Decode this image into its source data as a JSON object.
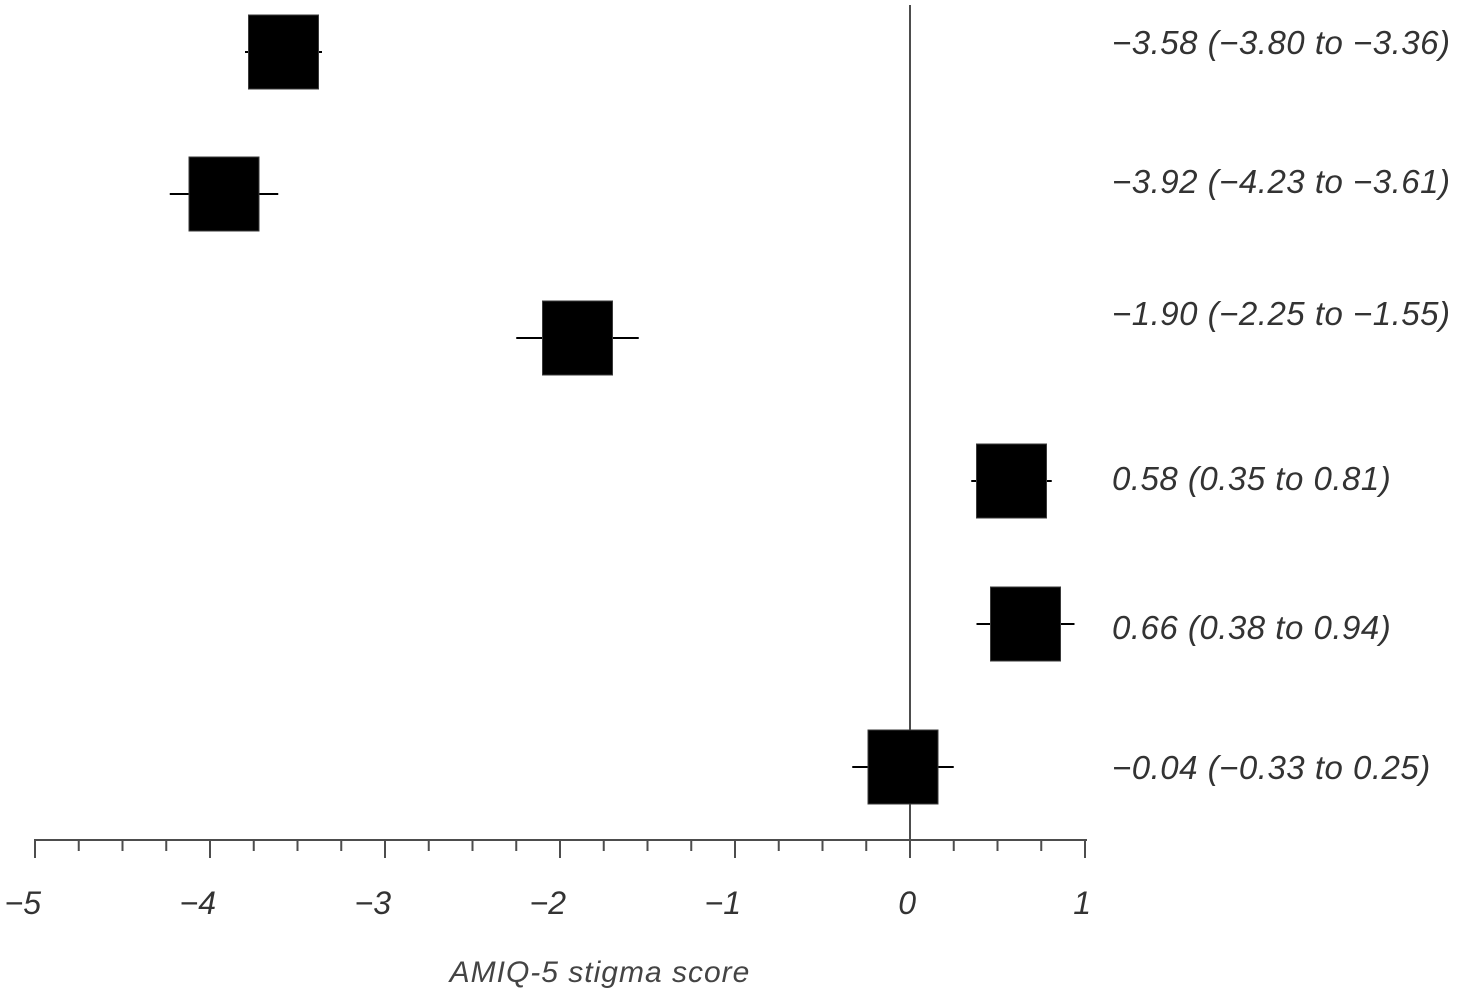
{
  "chart_data": {
    "type": "scatter",
    "marker": "square",
    "error_bars": "horizontal",
    "series": [
      {
        "x": [
          -3.58,
          -3.92,
          -1.9,
          0.58,
          0.66,
          -0.04
        ],
        "x_low": [
          -3.8,
          -4.23,
          -2.25,
          0.35,
          0.38,
          -0.33
        ],
        "x_high": [
          -3.36,
          -3.61,
          -1.55,
          0.81,
          0.94,
          0.25
        ]
      }
    ],
    "annotations": [
      "−3.58 (−3.80 to −3.36)",
      "−3.92 (−4.23 to −3.61)",
      "−1.90 (−2.25 to −1.55)",
      "0.58 (0.35 to 0.81)",
      "0.66 (0.38 to 0.94)",
      "−0.04 (−0.33 to 0.25)"
    ],
    "xlabel": "AMIQ-5 stigma score",
    "xlim": [
      -5,
      1
    ],
    "x_ticks": [
      -5,
      -4,
      -3,
      -2,
      -1,
      0,
      1
    ],
    "x_tick_labels": [
      "−5",
      "−4",
      "−3",
      "−2",
      "−1",
      "0",
      "1"
    ],
    "reference_line_x": 0,
    "grid": false,
    "colors": {
      "marker": "#000000",
      "axis": "#4d4d4d"
    }
  }
}
